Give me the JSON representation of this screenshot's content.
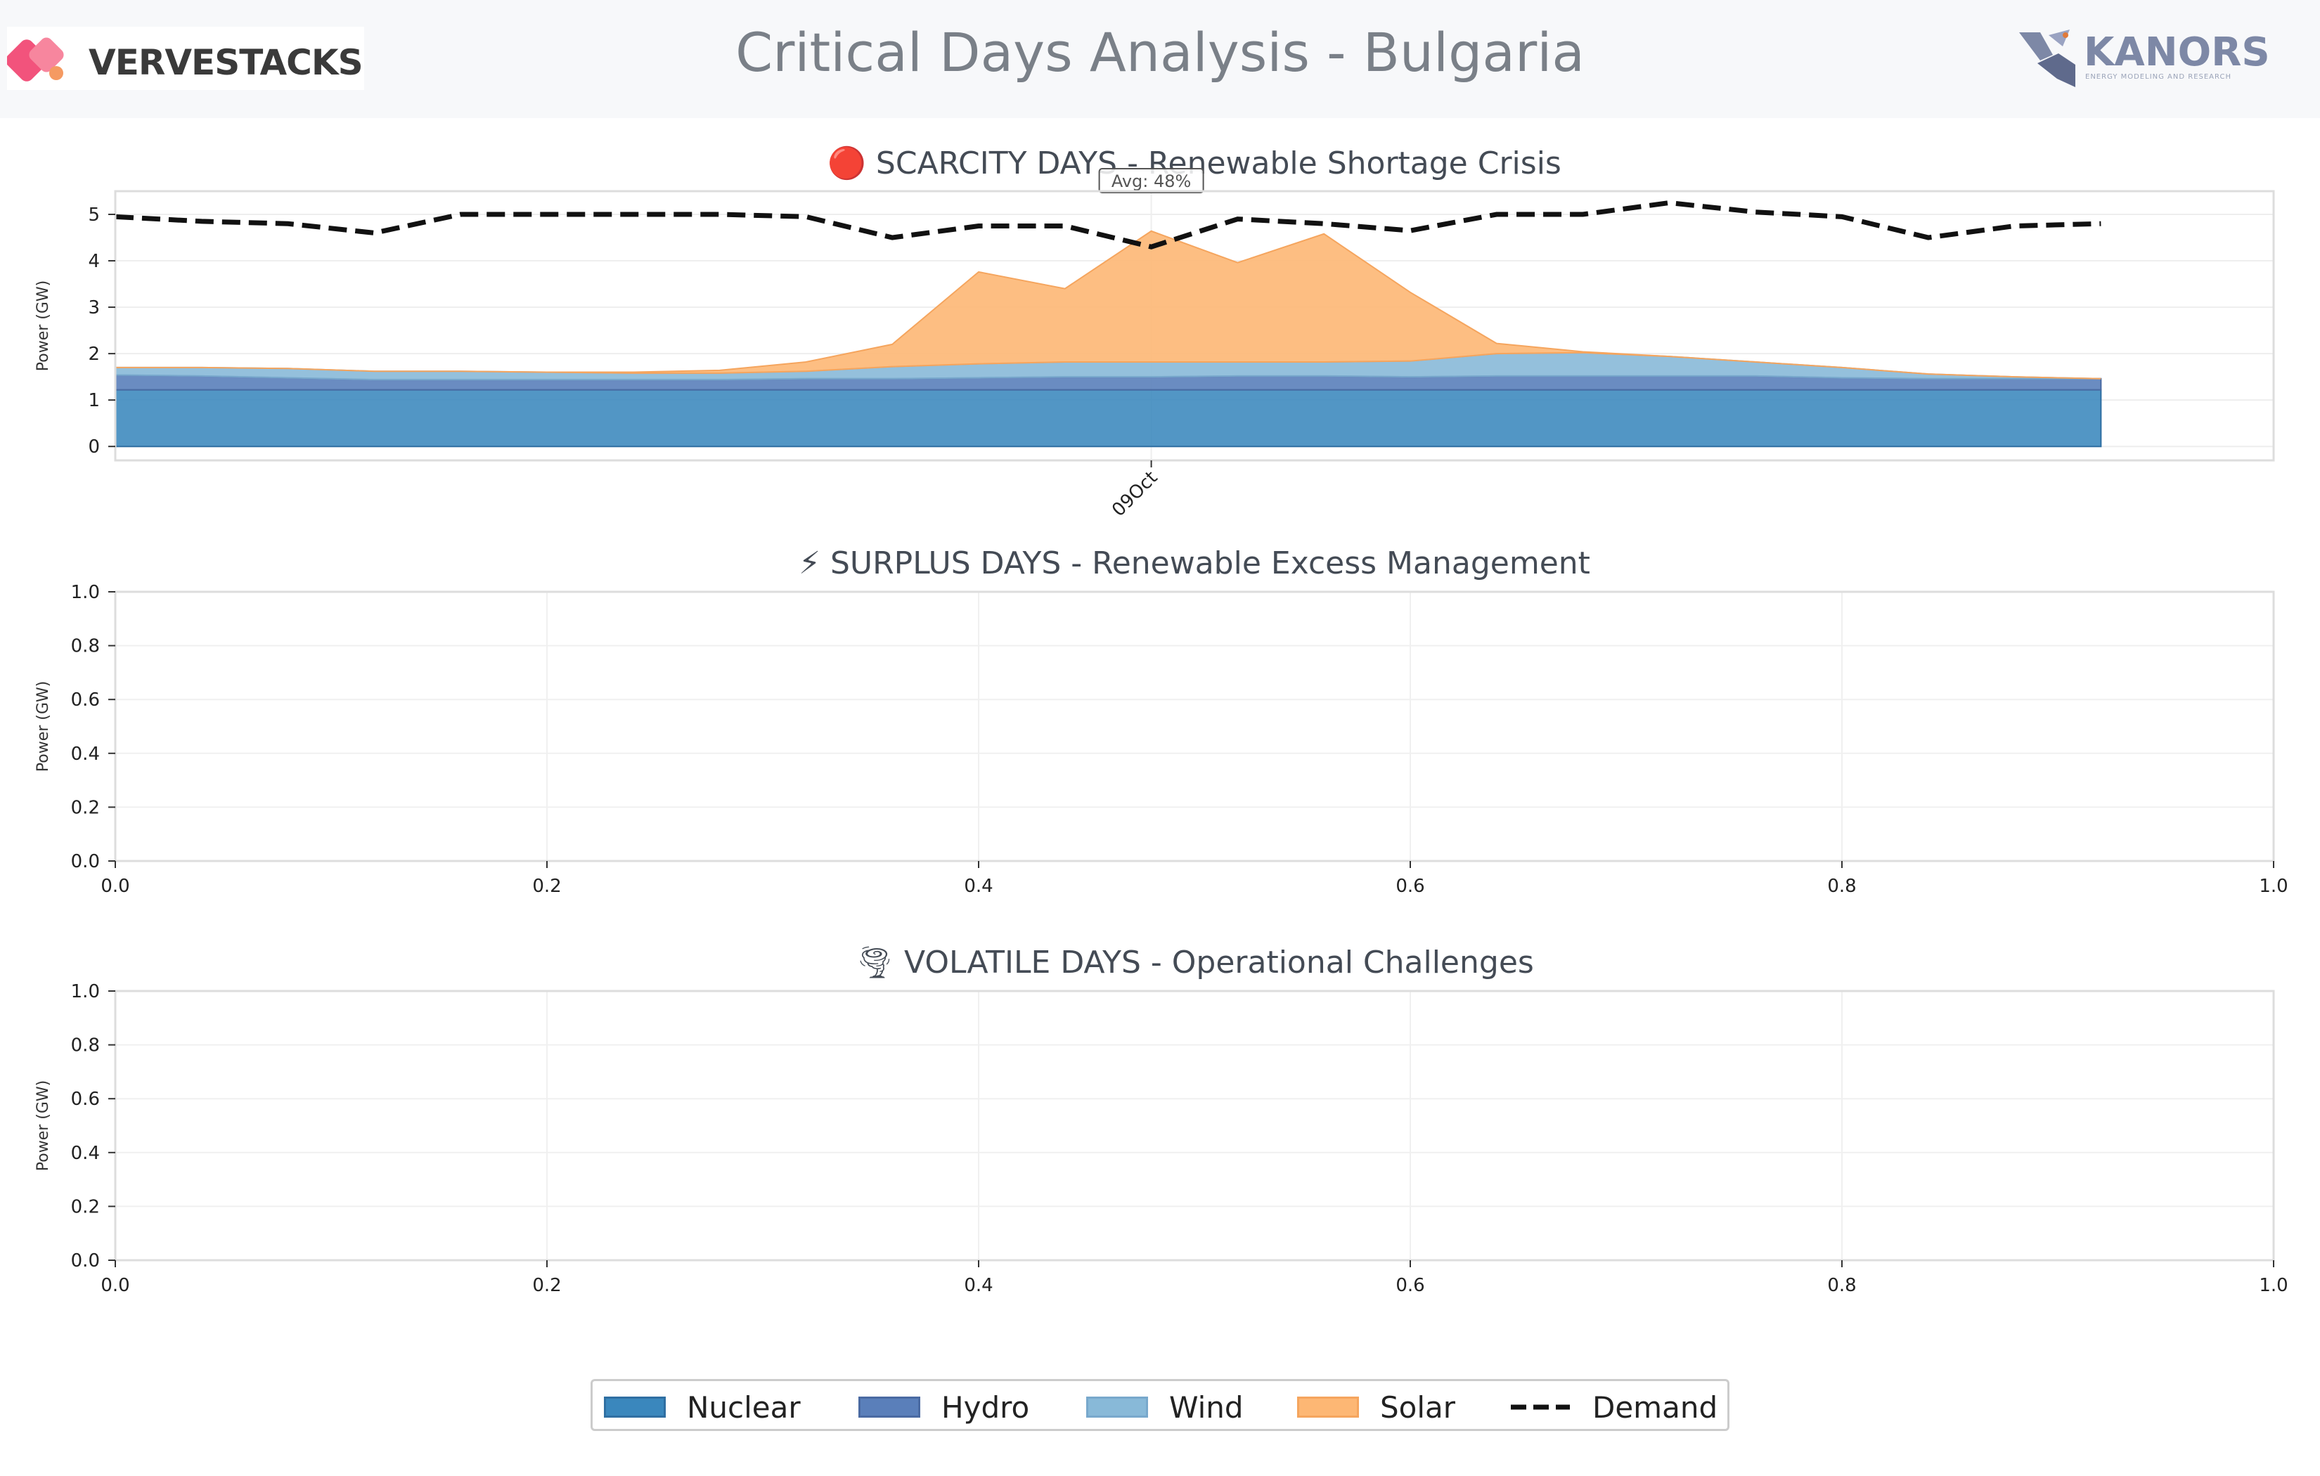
{
  "header": {
    "title": "Critical Days Analysis - Bulgaria",
    "logo_left": "VERVESTACKS",
    "logo_right": "KANORS",
    "logo_right_sub": "ENERGY MODELING AND RESEARCH"
  },
  "colors": {
    "nuclear": "#3a87bd",
    "hydro": "#5a7fba",
    "wind": "#88b9d8",
    "solar": "#fdb774",
    "demand": "#111111"
  },
  "chart_data": [
    {
      "type": "area",
      "title": "🔴 SCARCITY DAYS - Renewable Shortage Crisis",
      "ylabel": "Power (GW)",
      "xlim": [
        0,
        25
      ],
      "ylim": [
        -0.3,
        5.5
      ],
      "yticks": [
        0,
        1,
        2,
        3,
        4,
        5
      ],
      "xtick_pos": [
        12
      ],
      "xtick_labels": [
        "09Oct"
      ],
      "annotation": "Avg: 48%",
      "x": [
        0,
        1,
        2,
        3,
        4,
        5,
        6,
        7,
        8,
        9,
        10,
        11,
        12,
        13,
        14,
        15,
        16,
        17,
        18,
        19,
        20,
        21,
        22,
        23
      ],
      "series": [
        {
          "name": "Nuclear",
          "values": [
            1.22,
            1.22,
            1.22,
            1.22,
            1.22,
            1.22,
            1.22,
            1.22,
            1.22,
            1.22,
            1.22,
            1.22,
            1.22,
            1.22,
            1.22,
            1.22,
            1.22,
            1.22,
            1.22,
            1.22,
            1.22,
            1.22,
            1.22,
            1.22
          ]
        },
        {
          "name": "Hydro",
          "values": [
            0.32,
            0.3,
            0.26,
            0.22,
            0.22,
            0.22,
            0.22,
            0.22,
            0.24,
            0.24,
            0.26,
            0.28,
            0.28,
            0.3,
            0.3,
            0.28,
            0.3,
            0.3,
            0.3,
            0.3,
            0.26,
            0.24,
            0.24,
            0.24
          ]
        },
        {
          "name": "Wind",
          "values": [
            0.16,
            0.18,
            0.2,
            0.18,
            0.18,
            0.16,
            0.14,
            0.14,
            0.16,
            0.26,
            0.3,
            0.32,
            0.32,
            0.3,
            0.3,
            0.34,
            0.48,
            0.5,
            0.42,
            0.3,
            0.22,
            0.1,
            0.04,
            0.0
          ]
        },
        {
          "name": "Solar",
          "values": [
            0,
            0,
            0,
            0,
            0,
            0,
            0.02,
            0.06,
            0.2,
            0.48,
            1.98,
            1.58,
            2.82,
            2.14,
            2.76,
            1.48,
            0.22,
            0.02,
            0,
            0,
            0,
            0,
            0,
            0
          ]
        }
      ],
      "demand": [
        4.95,
        4.85,
        4.8,
        4.6,
        5.0,
        5.0,
        5.0,
        5.0,
        4.95,
        4.5,
        4.75,
        4.75,
        4.3,
        4.9,
        4.8,
        4.65,
        5.0,
        5.0,
        5.25,
        5.05,
        4.95,
        4.5,
        4.75,
        4.8
      ]
    },
    {
      "type": "area",
      "title": "⚡ SURPLUS DAYS - Renewable Excess Management",
      "ylabel": "Power (GW)",
      "xlim": [
        0,
        1
      ],
      "ylim": [
        0,
        1
      ],
      "xticks": [
        "0.0",
        "0.2",
        "0.4",
        "0.6",
        "0.8",
        "1.0"
      ],
      "yticks": [
        "0.0",
        "0.2",
        "0.4",
        "0.6",
        "0.8",
        "1.0"
      ]
    },
    {
      "type": "area",
      "title": "🌪 VOLATILE DAYS - Operational Challenges",
      "ylabel": "Power (GW)",
      "xlim": [
        0,
        1
      ],
      "ylim": [
        0,
        1
      ],
      "xticks": [
        "0.0",
        "0.2",
        "0.4",
        "0.6",
        "0.8",
        "1.0"
      ],
      "yticks": [
        "0.0",
        "0.2",
        "0.4",
        "0.6",
        "0.8",
        "1.0"
      ]
    }
  ],
  "legend": {
    "items": [
      "Nuclear",
      "Hydro",
      "Wind",
      "Solar",
      "Demand"
    ],
    "position": "bottom-center"
  }
}
